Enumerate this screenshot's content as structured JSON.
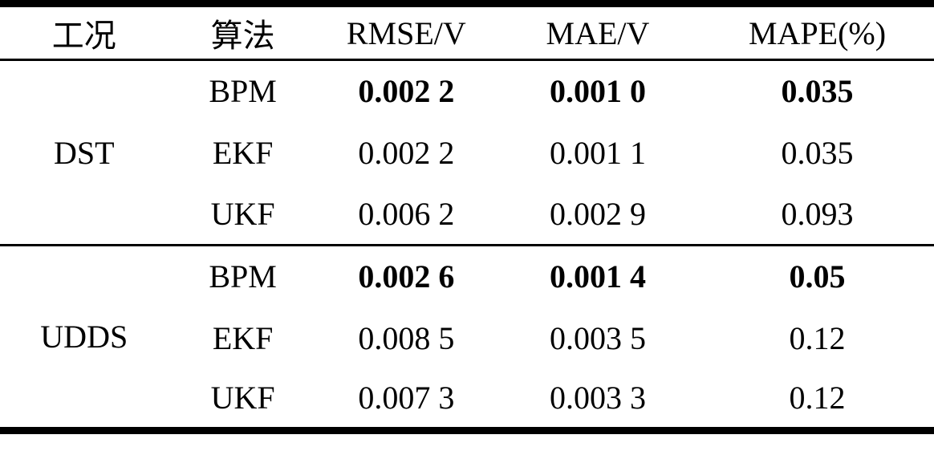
{
  "table": {
    "headers": [
      "工况",
      "算法",
      "RMSE/V",
      "MAE/V",
      "MAPE(%)"
    ],
    "groups": [
      {
        "condition": "DST",
        "rows": [
          {
            "algorithm": "BPM",
            "rmse": "0.002 2",
            "mae": "0.001 0",
            "mape": "0.035"
          },
          {
            "algorithm": "EKF",
            "rmse": "0.002 2",
            "mae": "0.001 1",
            "mape": "0.035"
          },
          {
            "algorithm": "UKF",
            "rmse": "0.006 2",
            "mae": "0.002 9",
            "mape": "0.093"
          }
        ]
      },
      {
        "condition": "UDDS",
        "rows": [
          {
            "algorithm": "BPM",
            "rmse": "0.002 6",
            "mae": "0.001 4",
            "mape": "0.05"
          },
          {
            "algorithm": "EKF",
            "rmse": "0.008 5",
            "mae": "0.003 5",
            "mape": "0.12"
          },
          {
            "algorithm": "UKF",
            "rmse": "0.007 3",
            "mae": "0.003 3",
            "mape": "0.12"
          }
        ]
      }
    ]
  },
  "chart_data": {
    "type": "table",
    "columns": [
      "工况",
      "算法",
      "RMSE/V",
      "MAE/V",
      "MAPE(%)"
    ],
    "rows": [
      [
        "DST",
        "BPM",
        0.0022,
        0.001,
        0.035
      ],
      [
        "DST",
        "EKF",
        0.0022,
        0.0011,
        0.035
      ],
      [
        "DST",
        "UKF",
        0.0062,
        0.0029,
        0.093
      ],
      [
        "UDDS",
        "BPM",
        0.0026,
        0.0014,
        0.05
      ],
      [
        "UDDS",
        "EKF",
        0.0085,
        0.0035,
        0.12
      ],
      [
        "UDDS",
        "UKF",
        0.0073,
        0.0033,
        0.12
      ]
    ],
    "bold_rows": [
      0,
      3
    ]
  },
  "colors": {
    "text": "#000000",
    "rule": "#000000",
    "background": "#ffffff"
  }
}
